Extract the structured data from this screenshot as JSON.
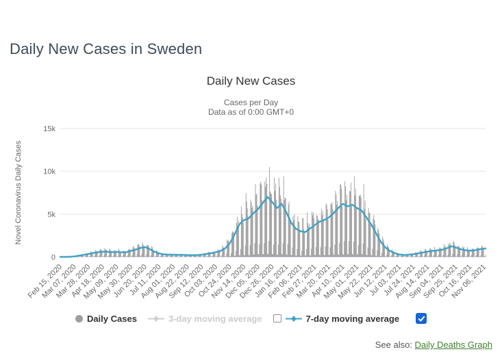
{
  "page": {
    "title": "Daily New Cases in Sweden"
  },
  "see_also": {
    "label": "See also:",
    "link_text": "Daily Deaths Graph"
  },
  "legend": {
    "items": [
      {
        "label": "Daily Cases",
        "marker": "circle",
        "color": "#9e9e9e",
        "enabled": true,
        "checkbox": "none"
      },
      {
        "label": "3-day moving average",
        "marker": "line-diamond",
        "color": "#cfcfcf",
        "enabled": false,
        "checkbox": "none"
      },
      {
        "label": "7-day moving average",
        "marker": "line-diamond",
        "color": "#3ea2c6",
        "enabled": true,
        "checkbox": "unchecked"
      },
      {
        "label": "",
        "marker": "none",
        "color": "#1665d8",
        "enabled": true,
        "checkbox": "checked"
      }
    ]
  },
  "colors": {
    "bar": "#9e9e9e",
    "avg7_line": "#3ea2c6",
    "avg3_disabled": "#cfcfcf",
    "grid": "#e6e6e6",
    "axis_line": "#ccd6eb",
    "tick_text": "#666666",
    "checkbox_checked": "#1665d8",
    "link_green": "#408030"
  },
  "chart_data": {
    "type": "bar",
    "title": "Daily New Cases",
    "subtitle_line1": "Cases per Day",
    "subtitle_line2": "Data as of 0:00 GMT+0",
    "ylabel": "Novel Coronavirus Daily Cases",
    "xlabel": "",
    "ylim": [
      0,
      15000
    ],
    "grid": true,
    "legend_position": "bottom",
    "y_ticks": {
      "values": [
        0,
        5000,
        10000,
        15000
      ],
      "labels": [
        "0",
        "5k",
        "10k",
        "15k"
      ]
    },
    "x_start": "Feb 15, 2020",
    "x_end": "Nov 08, 2021",
    "x_tick_interval_days": 21,
    "x_tick_labels": [
      "Feb 15, 2020",
      "Mar 07, 2020",
      "Mar 28, 2020",
      "Apr 18, 2020",
      "May 09, 2020",
      "May 30, 2020",
      "Jun 20, 2020",
      "Jul 11, 2020",
      "Aug 01, 2020",
      "Aug 22, 2020",
      "Sep 12, 2020",
      "Oct 03, 2020",
      "Oct 24, 2020",
      "Nov 14, 2020",
      "Dec 05, 2020",
      "Dec 26, 2020",
      "Jan 16, 2021",
      "Feb 06, 2021",
      "Feb 27, 2021",
      "Mar 20, 2021",
      "Apr 10, 2021",
      "May 01, 2021",
      "May 22, 2021",
      "Jun 12, 2021",
      "Jul 03, 2021",
      "Jul 24, 2021",
      "Aug 14, 2021",
      "Sep 04, 2021",
      "Sep 25, 2021",
      "Oct 16, 2021",
      "Nov 06, 2021"
    ],
    "series": [
      {
        "name": "Daily Cases",
        "type": "column",
        "color": "#9e9e9e",
        "visible": true,
        "description": "Daily reported cases; strong weekly reporting pattern with near-zero weekend bars; maximum spike ~11.2k in late Dec 2020, spring-2021 spikes ~8-9k, autumn-2021 spikes ~2-3k."
      },
      {
        "name": "3-day moving average",
        "type": "line",
        "color": "#cfcfcf",
        "visible": false
      },
      {
        "name": "7-day moving average",
        "type": "line",
        "color": "#3ea2c6",
        "visible": true,
        "sample_interval_days": 7,
        "sample_start": "Feb 15, 2020",
        "values": [
          5,
          5,
          15,
          60,
          150,
          250,
          350,
          450,
          550,
          600,
          600,
          550,
          600,
          550,
          550,
          700,
          850,
          1050,
          1150,
          900,
          600,
          400,
          300,
          260,
          250,
          250,
          240,
          210,
          200,
          210,
          260,
          350,
          430,
          550,
          700,
          1000,
          1600,
          2600,
          3800,
          4300,
          4500,
          5100,
          5600,
          6300,
          7000,
          6400,
          5700,
          6200,
          5200,
          4000,
          3300,
          3000,
          2900,
          3300,
          3700,
          4100,
          4300,
          4600,
          5100,
          5700,
          6200,
          5900,
          6100,
          5700,
          5400,
          4600,
          3800,
          2800,
          1800,
          1100,
          700,
          450,
          280,
          220,
          260,
          320,
          420,
          520,
          620,
          700,
          760,
          820,
          1000,
          1250,
          1100,
          900,
          780,
          720,
          780,
          880,
          980
        ]
      }
    ],
    "bar_render": {
      "weekday_factors": [
        0.06,
        0.05,
        0.3,
        1.6,
        1.45,
        1.35,
        1.2
      ],
      "note": "factors applied to 7-day average starting Sat Feb 15 2020 to recreate weekly reporting spikes"
    },
    "observed_peaks": {
      "max_daily_bar_approx": 11200,
      "max_7day_avg_approx": 7050,
      "peak_period": "late Dec 2020",
      "second_wave_peak_7day_avg": 6200,
      "second_wave_peak_period": "mid Apr 2021"
    }
  }
}
